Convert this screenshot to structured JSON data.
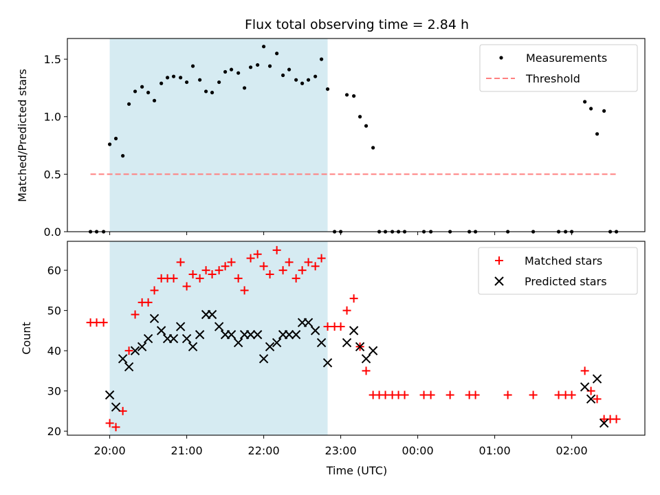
{
  "chart_data": {
    "type": "scatter",
    "title": "Flux total observing time = 2.84 h",
    "xlabel": "Time (UTC)",
    "x_tick_labels": [
      "20:00",
      "21:00",
      "22:00",
      "23:00",
      "00:00",
      "01:00",
      "02:00"
    ],
    "x_ticks_hours": [
      20,
      21,
      22,
      23,
      24,
      25,
      26
    ],
    "xlim_hours": [
      19.45,
      26.95
    ],
    "highlight_span_hours": [
      20.0,
      22.83
    ],
    "highlight_color": "#add8e6",
    "panels": [
      {
        "ylabel": "Matched/Predicted stars",
        "ylim": [
          0,
          1.68
        ],
        "y_ticks": [
          0.0,
          0.5,
          1.0,
          1.5
        ],
        "y_tick_labels": [
          "0.0",
          "0.5",
          "1.0",
          "1.5"
        ],
        "legend_position": "top-right",
        "series": [
          {
            "name": "Measurements",
            "marker": "dot",
            "color": "#000000",
            "x": [
              19.75,
              19.83,
              19.92,
              20.0,
              20.08,
              20.17,
              20.25,
              20.33,
              20.42,
              20.5,
              20.58,
              20.67,
              20.75,
              20.83,
              20.92,
              21.0,
              21.08,
              21.17,
              21.25,
              21.33,
              21.42,
              21.5,
              21.58,
              21.67,
              21.75,
              21.83,
              21.92,
              22.0,
              22.08,
              22.17,
              22.25,
              22.33,
              22.42,
              22.5,
              22.58,
              22.67,
              22.75,
              22.83,
              22.92,
              23.0,
              23.08,
              23.17,
              23.25,
              23.33,
              23.42,
              23.5,
              23.58,
              23.67,
              23.75,
              23.83,
              24.08,
              24.17,
              24.42,
              24.67,
              24.75,
              25.17,
              25.5,
              25.83,
              25.92,
              26.0,
              26.17,
              26.25,
              26.33,
              26.42,
              26.5,
              26.58
            ],
            "y": [
              0,
              0,
              0,
              0.76,
              0.81,
              0.66,
              1.11,
              1.22,
              1.26,
              1.21,
              1.14,
              1.29,
              1.34,
              1.35,
              1.34,
              1.3,
              1.44,
              1.32,
              1.22,
              1.21,
              1.3,
              1.39,
              1.41,
              1.38,
              1.25,
              1.43,
              1.45,
              1.61,
              1.44,
              1.55,
              1.36,
              1.41,
              1.32,
              1.29,
              1.32,
              1.35,
              1.5,
              1.24,
              0,
              0,
              1.19,
              1.18,
              1.0,
              0.92,
              0.73,
              0,
              0,
              0,
              0,
              0,
              0,
              0,
              0,
              0,
              0,
              0,
              0,
              0,
              0,
              0,
              1.13,
              1.07,
              0.85,
              1.05,
              0,
              0
            ]
          },
          {
            "name": "Threshold",
            "marker": "dashed-line",
            "color": "#ff8080",
            "x": [
              19.75,
              26.58
            ],
            "y": [
              0.5,
              0.5
            ]
          }
        ]
      },
      {
        "ylabel": "Count",
        "ylim": [
          19,
          67.2
        ],
        "y_ticks": [
          20,
          30,
          40,
          50,
          60
        ],
        "y_tick_labels": [
          "20",
          "30",
          "40",
          "50",
          "60"
        ],
        "legend_position": "top-right",
        "series": [
          {
            "name": "Matched stars",
            "marker": "plus",
            "color": "#ff0000",
            "x": [
              19.75,
              19.83,
              19.92,
              20.0,
              20.08,
              20.17,
              20.25,
              20.33,
              20.42,
              20.5,
              20.58,
              20.67,
              20.75,
              20.83,
              20.92,
              21.0,
              21.08,
              21.17,
              21.25,
              21.33,
              21.42,
              21.5,
              21.58,
              21.67,
              21.75,
              21.83,
              21.92,
              22.0,
              22.08,
              22.17,
              22.25,
              22.33,
              22.42,
              22.5,
              22.58,
              22.67,
              22.75,
              22.83,
              22.92,
              23.0,
              23.08,
              23.17,
              23.25,
              23.33,
              23.42,
              23.5,
              23.58,
              23.67,
              23.75,
              23.83,
              24.08,
              24.17,
              24.42,
              24.67,
              24.75,
              25.17,
              25.5,
              25.83,
              25.92,
              26.0,
              26.17,
              26.25,
              26.33,
              26.42,
              26.5,
              26.58
            ],
            "y": [
              47,
              47,
              47,
              22,
              21,
              25,
              40,
              49,
              52,
              52,
              55,
              58,
              58,
              58,
              62,
              56,
              59,
              58,
              60,
              59,
              60,
              61,
              62,
              58,
              55,
              63,
              64,
              61,
              59,
              65,
              60,
              62,
              58,
              60,
              62,
              61,
              63,
              46,
              46,
              46,
              50,
              53,
              41,
              35,
              29,
              29,
              29,
              29,
              29,
              29,
              29,
              29,
              29,
              29,
              29,
              29,
              29,
              29,
              29,
              29,
              35,
              30,
              28,
              23,
              23,
              23
            ]
          },
          {
            "name": "Predicted stars",
            "marker": "cross",
            "color": "#000000",
            "x": [
              20.0,
              20.08,
              20.17,
              20.25,
              20.33,
              20.42,
              20.5,
              20.58,
              20.67,
              20.75,
              20.83,
              20.92,
              21.0,
              21.08,
              21.17,
              21.25,
              21.33,
              21.42,
              21.5,
              21.58,
              21.67,
              21.75,
              21.83,
              21.92,
              22.0,
              22.08,
              22.17,
              22.25,
              22.33,
              22.42,
              22.5,
              22.58,
              22.67,
              22.75,
              22.83,
              23.08,
              23.17,
              23.25,
              23.33,
              23.42,
              26.17,
              26.25,
              26.33,
              26.42
            ],
            "y": [
              29,
              26,
              38,
              36,
              40,
              41,
              43,
              48,
              45,
              43,
              43,
              46,
              43,
              41,
              44,
              49,
              49,
              46,
              44,
              44,
              42,
              44,
              44,
              44,
              38,
              41,
              42,
              44,
              44,
              44,
              47,
              47,
              45,
              42,
              37,
              42,
              45,
              41,
              38,
              40,
              31,
              28,
              33,
              22
            ]
          }
        ]
      }
    ]
  }
}
